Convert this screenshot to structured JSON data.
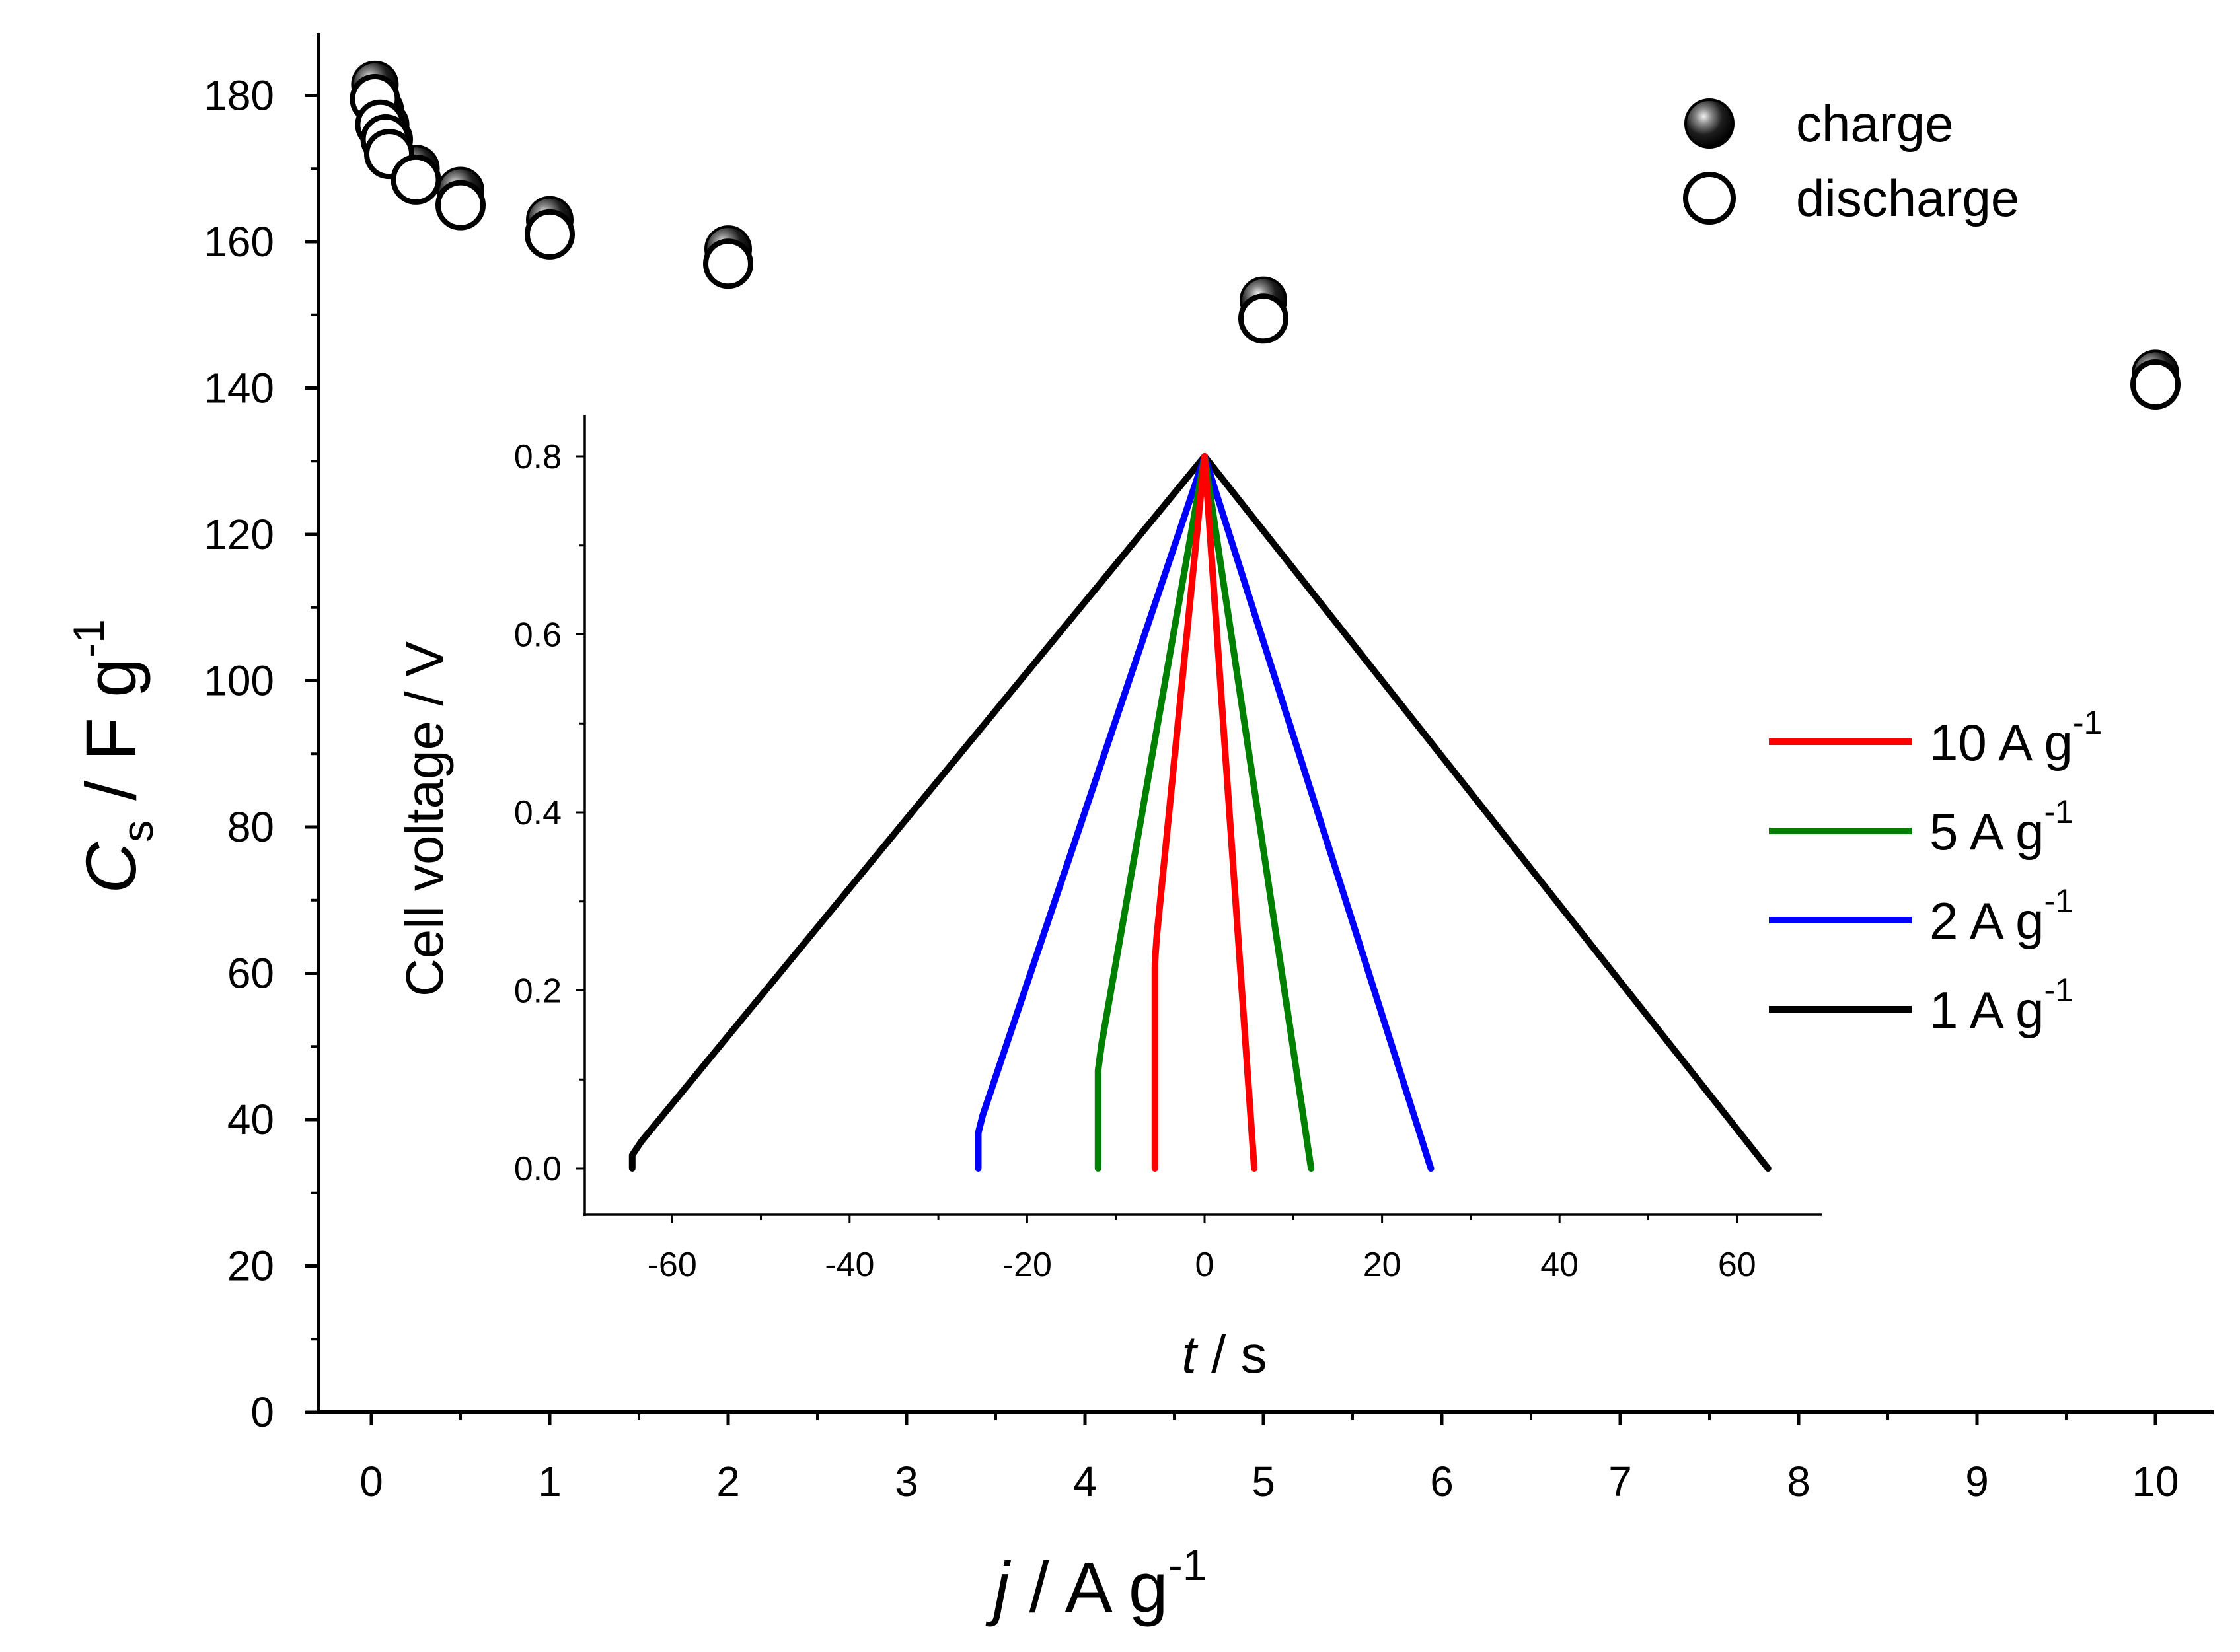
{
  "chart_data": [
    {
      "type": "scatter",
      "role": "main",
      "xlabel": {
        "var": "j",
        "unit": "/ A g",
        "exp": "-1"
      },
      "ylabel": {
        "var": "C",
        "sub": "s",
        "unit": "/ F g",
        "exp": "-1"
      },
      "xlim": [
        -0.3,
        10.3
      ],
      "ylim": [
        0,
        190
      ],
      "xticks": [
        0,
        1,
        2,
        3,
        4,
        5,
        6,
        7,
        8,
        9,
        10
      ],
      "yticks": [
        0,
        20,
        40,
        60,
        80,
        100,
        120,
        140,
        160,
        180
      ],
      "legend": {
        "position": "top-right",
        "entries": [
          "charge",
          "discharge"
        ]
      },
      "series": [
        {
          "name": "charge",
          "marker": "filled-sphere",
          "x": [
            0.02,
            0.05,
            0.08,
            0.1,
            0.25,
            0.5,
            1,
            2,
            5,
            10
          ],
          "y": [
            181.5,
            178,
            176,
            174,
            170,
            167,
            163,
            159,
            152,
            142
          ]
        },
        {
          "name": "discharge",
          "marker": "open-circle",
          "x": [
            0.02,
            0.05,
            0.08,
            0.1,
            0.25,
            0.5,
            1,
            2,
            5,
            10
          ],
          "y": [
            179.5,
            176,
            174,
            172,
            168.5,
            165,
            161,
            157,
            149.5,
            140.5
          ]
        }
      ]
    },
    {
      "type": "line",
      "role": "inset",
      "xlabel": {
        "var": "t",
        "unit": "/ s"
      },
      "ylabel": "Cell voltage / V",
      "xlim": [
        -70,
        70
      ],
      "ylim": [
        -0.05,
        0.85
      ],
      "xticks": [
        -60,
        -40,
        -20,
        0,
        20,
        40,
        60
      ],
      "yticks": [
        "0.0",
        "0.2",
        "0.4",
        "0.6",
        "0.8"
      ],
      "legend": {
        "position": "right",
        "entries": [
          "10 A g",
          "5 A g",
          "2 A g",
          "1 A g"
        ],
        "exp": "-1"
      },
      "series": [
        {
          "name": "10 A g",
          "color": "#ff0000",
          "x": [
            -5.6,
            -5.6,
            -5.4,
            0,
            5.6
          ],
          "y": [
            0,
            0.23,
            0.26,
            0.8,
            0
          ]
        },
        {
          "name": "5 A g",
          "color": "#008000",
          "x": [
            -12,
            -12,
            -11.6,
            0,
            12
          ],
          "y": [
            0,
            0.11,
            0.14,
            0.8,
            0
          ]
        },
        {
          "name": "2 A g",
          "color": "#0000ff",
          "x": [
            -25.5,
            -25.5,
            -25,
            0,
            25.5
          ],
          "y": [
            0,
            0.04,
            0.06,
            0.8,
            0
          ]
        },
        {
          "name": "1 A g",
          "color": "#000000",
          "x": [
            -64.5,
            -64.5,
            -63.5,
            0,
            63.5
          ],
          "y": [
            0,
            0.015,
            0.03,
            0.8,
            0
          ]
        }
      ]
    }
  ]
}
